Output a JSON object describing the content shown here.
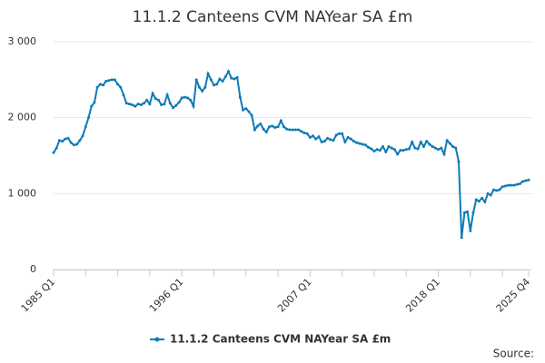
{
  "chart_data": {
    "type": "line",
    "title": "11.1.2 Canteens CVM NAYear SA £m",
    "categories": [
      "1985 Q1",
      null,
      null,
      null,
      null,
      null,
      null,
      null,
      null,
      null,
      null,
      null,
      null,
      null,
      null,
      null,
      null,
      null,
      null,
      null,
      null,
      null,
      null,
      null,
      null,
      null,
      null,
      null,
      null,
      null,
      null,
      null,
      null,
      null,
      null,
      null,
      null,
      null,
      null,
      null,
      null,
      null,
      null,
      null,
      "1996 Q1",
      null,
      null,
      null,
      null,
      null,
      null,
      null,
      null,
      null,
      null,
      null,
      null,
      null,
      null,
      null,
      null,
      null,
      null,
      null,
      null,
      null,
      null,
      null,
      null,
      null,
      null,
      null,
      null,
      null,
      null,
      null,
      null,
      null,
      null,
      null,
      null,
      null,
      null,
      null,
      null,
      null,
      null,
      null,
      "2007 Q1",
      null,
      null,
      null,
      null,
      null,
      null,
      null,
      null,
      null,
      null,
      null,
      null,
      null,
      null,
      null,
      null,
      null,
      null,
      null,
      null,
      null,
      null,
      null,
      null,
      null,
      null,
      null,
      null,
      null,
      null,
      null,
      null,
      null,
      null,
      null,
      null,
      null,
      null,
      null,
      null,
      null,
      null,
      null,
      "2018 Q1",
      null,
      null,
      null,
      null,
      null,
      null,
      null,
      null,
      null,
      null,
      null,
      null,
      null,
      null,
      null,
      null,
      null,
      null,
      null,
      null,
      null,
      null,
      null,
      null,
      null,
      null,
      null,
      null,
      null,
      null,
      "2025 Q4"
    ],
    "series": [
      {
        "name": "11.1.2 Canteens CVM NAYear SA £m",
        "color": "#0f7bb5",
        "values": [
          1540,
          1600,
          1700,
          1690,
          1720,
          1730,
          1670,
          1640,
          1650,
          1700,
          1760,
          1880,
          2000,
          2150,
          2200,
          2400,
          2440,
          2430,
          2480,
          2490,
          2500,
          2500,
          2440,
          2400,
          2300,
          2190,
          2180,
          2170,
          2150,
          2180,
          2170,
          2190,
          2230,
          2180,
          2320,
          2250,
          2230,
          2170,
          2180,
          2300,
          2190,
          2130,
          2160,
          2200,
          2260,
          2270,
          2260,
          2230,
          2150,
          2500,
          2400,
          2350,
          2400,
          2580,
          2500,
          2430,
          2440,
          2510,
          2480,
          2540,
          2610,
          2520,
          2510,
          2530,
          2270,
          2100,
          2120,
          2080,
          2030,
          1840,
          1890,
          1920,
          1850,
          1810,
          1880,
          1890,
          1870,
          1880,
          1960,
          1880,
          1850,
          1840,
          1840,
          1840,
          1840,
          1820,
          1800,
          1790,
          1740,
          1760,
          1720,
          1750,
          1680,
          1690,
          1730,
          1710,
          1700,
          1770,
          1790,
          1790,
          1680,
          1740,
          1720,
          1690,
          1670,
          1660,
          1650,
          1640,
          1610,
          1590,
          1560,
          1580,
          1570,
          1620,
          1550,
          1620,
          1600,
          1580,
          1520,
          1570,
          1570,
          1580,
          1590,
          1680,
          1600,
          1590,
          1680,
          1620,
          1690,
          1650,
          1620,
          1600,
          1580,
          1600,
          1520,
          1700,
          1660,
          1620,
          1600,
          1420,
          420,
          750,
          760,
          510,
          750,
          920,
          900,
          940,
          890,
          1000,
          980,
          1050,
          1040,
          1050,
          1090,
          1100,
          1110,
          1110,
          1110,
          1120,
          1130,
          1160,
          1170,
          1180
        ]
      }
    ],
    "ylim": [
      0,
      3000
    ],
    "yticks": [
      0,
      {
        "value": 1000,
        "label": "1 000"
      },
      {
        "value": 2000,
        "label": "2 000"
      },
      {
        "value": 3000,
        "label": "3 000"
      }
    ],
    "grid": true,
    "source": "Source:"
  }
}
